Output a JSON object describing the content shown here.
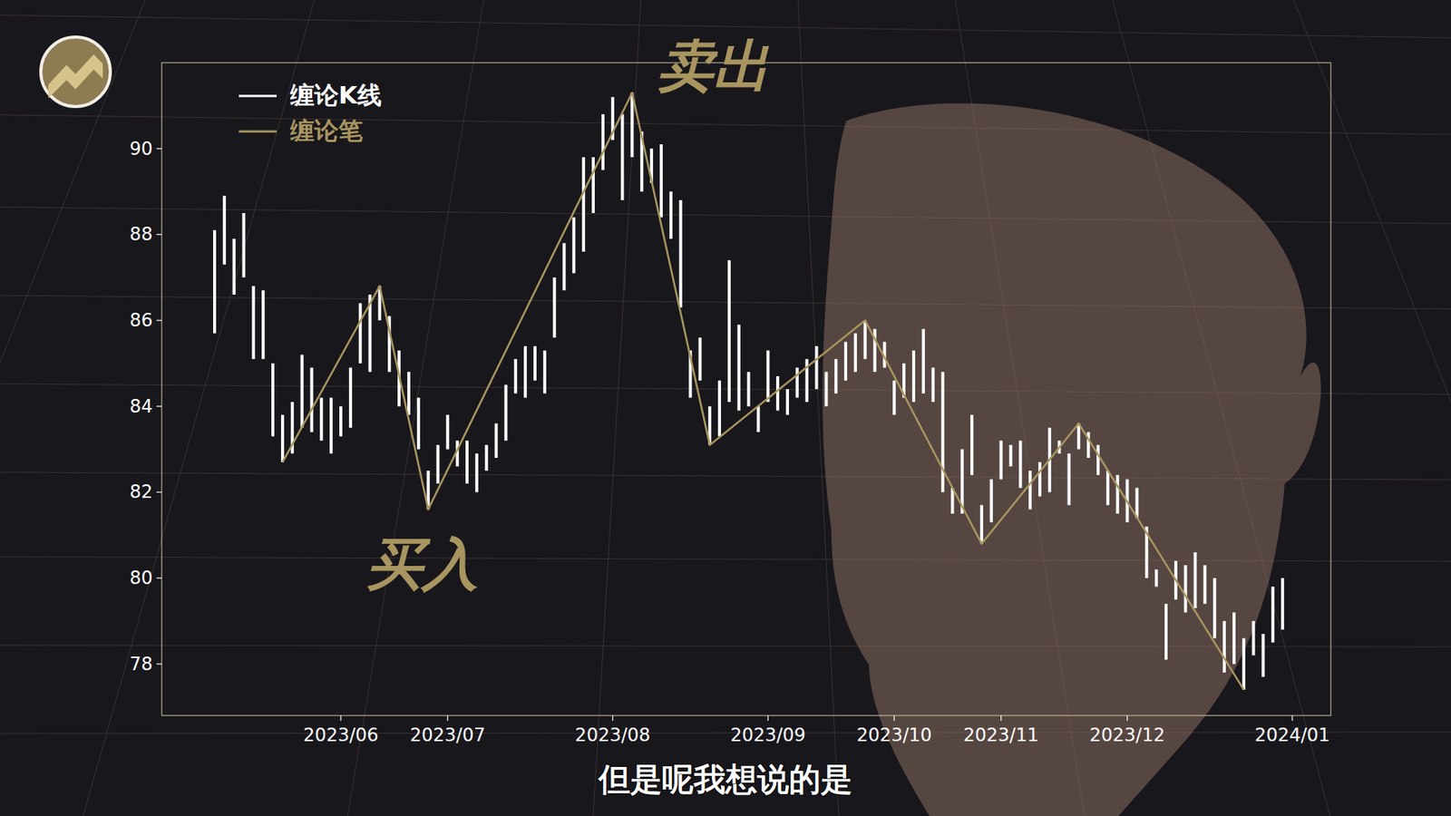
{
  "chart_data": {
    "type": "range",
    "subtitle": "但是呢我想说的是",
    "legend": "upper left",
    "grid": false,
    "categories": [
      null,
      null,
      null,
      null,
      null,
      null,
      null,
      null,
      null,
      null,
      null,
      null,
      null,
      "2023/06",
      null,
      null,
      null,
      null,
      null,
      null,
      null,
      null,
      null,
      null,
      "2023/07",
      null,
      null,
      null,
      null,
      null,
      null,
      null,
      null,
      null,
      null,
      null,
      null,
      null,
      null,
      null,
      null,
      "2023/08",
      null,
      null,
      null,
      null,
      null,
      null,
      null,
      null,
      null,
      null,
      null,
      null,
      null,
      null,
      null,
      "2023/09",
      null,
      null,
      null,
      null,
      null,
      null,
      null,
      null,
      null,
      null,
      null,
      null,
      "2023/10",
      null,
      null,
      null,
      null,
      null,
      null,
      null,
      null,
      null,
      null,
      "2023/11",
      null,
      null,
      null,
      null,
      null,
      null,
      null,
      null,
      null,
      null,
      null,
      null,
      "2023/12",
      null,
      null,
      null,
      null,
      null,
      null,
      null,
      null,
      null,
      null,
      null,
      null,
      null,
      null,
      null,
      null,
      "2024/01"
    ],
    "ylim": [
      76.8,
      92
    ],
    "yticks": [
      78,
      80,
      82,
      84,
      86,
      88,
      90
    ],
    "series": [
      {
        "name": "缠论K线",
        "type": "range",
        "color": "#ffffff",
        "low": [
          85.7,
          87.3,
          86.6,
          87.0,
          85.1,
          85.1,
          83.3,
          82.7,
          82.9,
          83.5,
          83.4,
          83.2,
          82.9,
          83.3,
          83.5,
          85.0,
          84.8,
          86.0,
          84.8,
          84.0,
          83.8,
          83.0,
          81.6,
          82.2,
          83.0,
          82.6,
          82.2,
          82.0,
          82.5,
          82.8,
          83.2,
          84.3,
          84.2,
          84.6,
          84.3,
          85.6,
          86.7,
          87.1,
          87.6,
          88.5,
          89.5,
          90.2,
          88.8,
          89.8,
          89.0,
          89.2,
          88.4,
          87.9,
          86.3,
          84.2,
          84.6,
          83.1,
          83.3,
          84.1,
          83.9,
          84.0,
          83.4,
          84.1,
          83.9,
          83.8,
          84.2,
          84.1,
          84.4,
          84.0,
          84.3,
          84.6,
          84.8,
          85.1,
          84.8,
          84.9,
          83.8,
          84.2,
          84.1,
          84.3,
          84.1,
          82.0,
          81.5,
          81.5,
          82.4,
          80.8,
          81.3,
          82.3,
          82.6,
          82.1,
          81.6,
          81.9,
          82.0,
          82.9,
          81.7,
          83.0,
          82.8,
          82.4,
          81.7,
          81.5,
          81.3,
          81.4,
          80.0,
          79.8,
          78.1,
          79.5,
          79.2,
          79.3,
          79.4,
          78.6,
          77.8,
          78.0,
          77.4,
          78.2,
          77.7,
          78.5,
          78.8,
          null
        ],
        "high": [
          88.1,
          88.9,
          87.9,
          88.5,
          86.8,
          86.7,
          85.0,
          83.8,
          84.1,
          85.2,
          84.9,
          84.2,
          84.2,
          84.0,
          84.9,
          86.4,
          86.6,
          86.8,
          86.1,
          85.3,
          84.8,
          84.2,
          82.5,
          83.1,
          83.8,
          83.2,
          83.2,
          82.9,
          83.1,
          83.6,
          84.5,
          85.1,
          85.4,
          85.4,
          85.3,
          87.0,
          87.8,
          88.4,
          89.8,
          89.8,
          90.8,
          91.2,
          90.8,
          91.3,
          90.4,
          90.0,
          90.1,
          89.0,
          88.8,
          85.3,
          85.6,
          84.0,
          84.6,
          87.4,
          85.9,
          84.8,
          84.0,
          85.3,
          84.7,
          84.4,
          84.9,
          85.1,
          85.4,
          84.8,
          85.1,
          85.5,
          85.7,
          86.0,
          85.8,
          85.5,
          84.6,
          85.0,
          85.3,
          85.8,
          84.9,
          84.8,
          82.1,
          83.0,
          83.8,
          81.7,
          82.3,
          83.2,
          83.1,
          83.2,
          82.5,
          82.7,
          83.5,
          83.2,
          82.9,
          83.6,
          83.4,
          83.1,
          82.5,
          82.4,
          82.3,
          82.1,
          81.2,
          80.2,
          79.4,
          80.4,
          80.3,
          80.6,
          80.3,
          80.0,
          79.0,
          79.2,
          78.6,
          79.0,
          78.7,
          79.8,
          80.0,
          null
        ]
      },
      {
        "name": "缠论笔",
        "type": "line",
        "color": "#a8955f",
        "x": [
          7,
          17,
          22,
          43,
          51,
          67,
          79,
          89,
          106
        ],
        "values": [
          82.7,
          86.8,
          81.6,
          91.3,
          83.1,
          86.0,
          80.8,
          83.6,
          77.4
        ]
      }
    ],
    "annotations": [
      {
        "text": "卖出",
        "x": 43,
        "y": 91.3
      },
      {
        "text": "买入",
        "x": 22,
        "y": 81.6
      }
    ]
  }
}
